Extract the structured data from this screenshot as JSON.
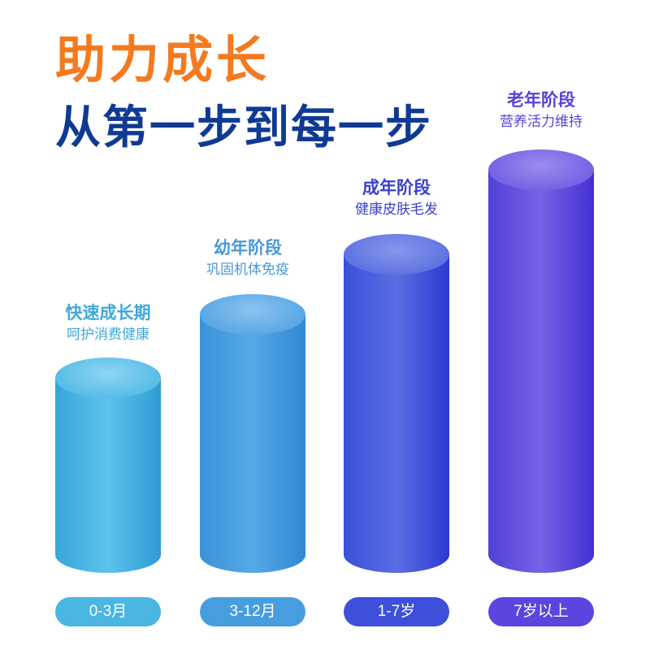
{
  "headline": {
    "line1": "助力成长",
    "line2": "从第一步到每一步"
  },
  "stages": [
    {
      "title": "快速成长期",
      "subtitle": "呵护消费健康",
      "age": "0-3月",
      "color": "#4ab6e2",
      "text_color": "#3ea8dc"
    },
    {
      "title": "幼年阶段",
      "subtitle": "巩固机体免疫",
      "age": "3-12月",
      "color": "#479edf",
      "text_color": "#4a98d8"
    },
    {
      "title": "成年阶段",
      "subtitle": "健康皮肤毛发",
      "age": "1-7岁",
      "color": "#3d4fdb",
      "text_color": "#3a40cf"
    },
    {
      "title": "老年阶段",
      "subtitle": "营养活力维持",
      "age": "7岁以上",
      "color": "#5a45df",
      "text_color": "#5a3fd6"
    }
  ],
  "colors": {
    "headline1": "#f47a20",
    "headline2": "#0f3a94"
  }
}
